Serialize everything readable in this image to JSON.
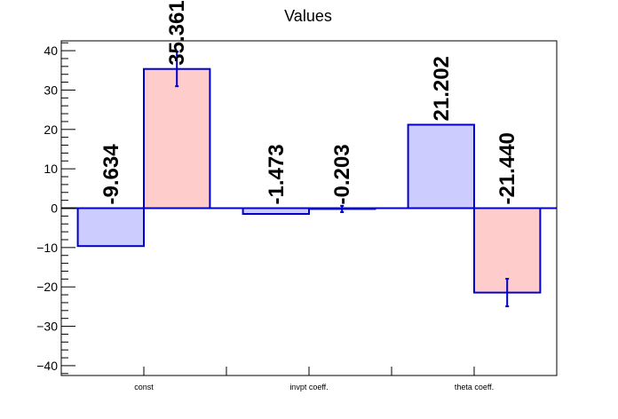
{
  "chart_data": {
    "type": "bar",
    "title": "Values",
    "xlabel": "",
    "ylabel": "",
    "categories": [
      "const",
      "invpt coeff.",
      "theta coeff."
    ],
    "ylim": [
      -42.5,
      42.5
    ],
    "yticks": [
      -40,
      -30,
      -20,
      -10,
      0,
      10,
      20,
      30,
      40
    ],
    "ytick_labels": [
      "−40",
      "−30",
      "−20",
      "−10",
      "0",
      "10",
      "20",
      "30",
      "40"
    ],
    "data_label_format": "3 decimals",
    "grid": false,
    "series": [
      {
        "values": [
          -9.634,
          -1.473,
          21.202
        ],
        "errors": [
          0,
          0,
          0
        ],
        "fill": "#ccccff",
        "edge": "#0000cc"
      },
      {
        "values": [
          35.361,
          -0.203,
          -21.44
        ],
        "errors": [
          4.4,
          0.8,
          3.5
        ],
        "fill": "#ffcccc",
        "edge": "#0000cc"
      }
    ]
  }
}
